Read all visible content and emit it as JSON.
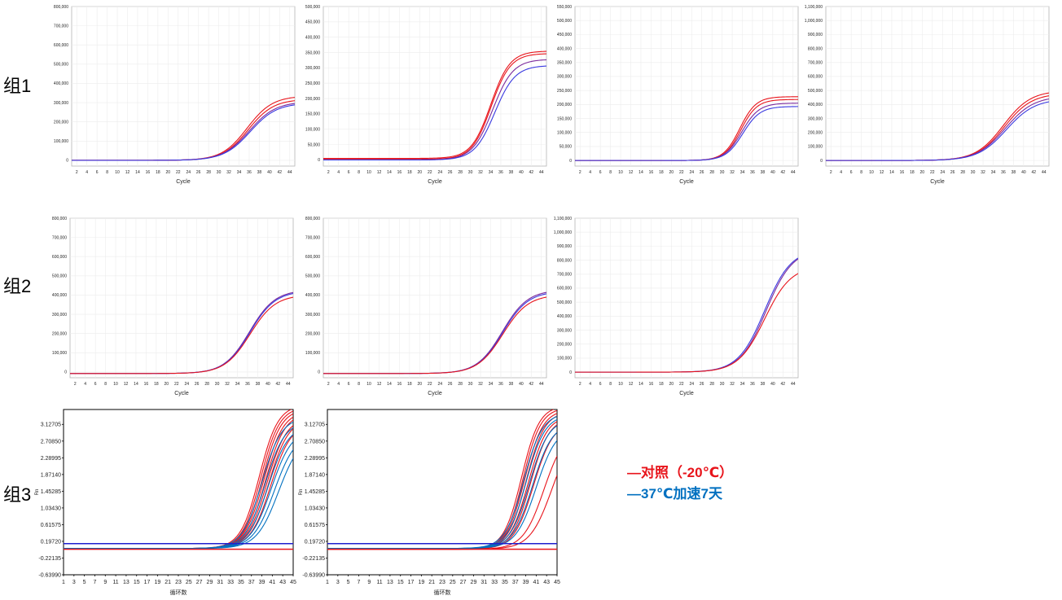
{
  "groups": [
    {
      "label": "组1"
    },
    {
      "label": "组2"
    },
    {
      "label": "组3"
    }
  ],
  "legend": {
    "items": [
      {
        "text": "—对照（-20℃）",
        "color": "#e8141b"
      },
      {
        "text": "—37℃加速7天",
        "color": "#0070c0"
      }
    ]
  },
  "chart_data": [
    {
      "type": "line",
      "group": "组1",
      "xlabel": "Cycle",
      "ylabel": "",
      "grid": true,
      "xlim": [
        1,
        45
      ],
      "ylim": [
        -30000,
        800000
      ],
      "xticks": [
        2,
        4,
        6,
        8,
        10,
        12,
        14,
        16,
        18,
        20,
        22,
        24,
        26,
        28,
        30,
        32,
        34,
        36,
        38,
        40,
        42,
        44
      ],
      "yticks": [
        0,
        100000,
        200000,
        300000,
        400000,
        500000,
        600000,
        700000,
        800000
      ],
      "ytick_labels": [
        "0",
        "100,000",
        "200,000",
        "300,000",
        "400,000",
        "500,000",
        "600,000",
        "700,000",
        "800,000"
      ],
      "series": [
        {
          "color": "#e8141b",
          "midpoint": 35.6,
          "slope": 2.5,
          "plateau": 335000,
          "baseline": 0
        },
        {
          "color": "#e8141b",
          "midpoint": 35.8,
          "slope": 2.5,
          "plateau": 318000,
          "baseline": 0
        },
        {
          "color": "#7b2a9c",
          "midpoint": 36.0,
          "slope": 2.6,
          "plateau": 305000,
          "baseline": 0
        },
        {
          "color": "#3a3ae0",
          "midpoint": 36.2,
          "slope": 2.6,
          "plateau": 298000,
          "baseline": 0
        }
      ]
    },
    {
      "type": "line",
      "group": "组1",
      "xlabel": "Cycle",
      "ylabel": "",
      "grid": true,
      "xlim": [
        1,
        45
      ],
      "ylim": [
        -20000,
        500000
      ],
      "xticks": [
        2,
        4,
        6,
        8,
        10,
        12,
        14,
        16,
        18,
        20,
        22,
        24,
        26,
        28,
        30,
        32,
        34,
        36,
        38,
        40,
        42,
        44
      ],
      "yticks": [
        0,
        50000,
        100000,
        150000,
        200000,
        250000,
        300000,
        350000,
        400000,
        450000,
        500000
      ],
      "ytick_labels": [
        "0",
        "50,000",
        "100,000",
        "150,000",
        "200,000",
        "250,000",
        "300,000",
        "350,000",
        "400,000",
        "450,000",
        "500,000"
      ],
      "series": [
        {
          "color": "#e8141b",
          "midpoint": 34.0,
          "slope": 1.9,
          "plateau": 350000,
          "baseline": 5000
        },
        {
          "color": "#e8141b",
          "midpoint": 34.1,
          "slope": 1.9,
          "plateau": 345000,
          "baseline": 2000
        },
        {
          "color": "#7b2a9c",
          "midpoint": 34.4,
          "slope": 2.0,
          "plateau": 328000,
          "baseline": 0
        },
        {
          "color": "#3a3ae0",
          "midpoint": 34.8,
          "slope": 2.0,
          "plateau": 308000,
          "baseline": 0
        }
      ]
    },
    {
      "type": "line",
      "group": "组1",
      "xlabel": "Cycle",
      "ylabel": "",
      "grid": true,
      "xlim": [
        1,
        45
      ],
      "ylim": [
        -20000,
        550000
      ],
      "xticks": [
        2,
        4,
        6,
        8,
        10,
        12,
        14,
        16,
        18,
        20,
        22,
        24,
        26,
        28,
        30,
        32,
        34,
        36,
        38,
        40,
        42,
        44
      ],
      "yticks": [
        0,
        50000,
        100000,
        150000,
        200000,
        250000,
        300000,
        350000,
        400000,
        450000,
        500000,
        550000
      ],
      "ytick_labels": [
        "0",
        "50,000",
        "100,000",
        "150,000",
        "200,000",
        "250,000",
        "300,000",
        "350,000",
        "400,000",
        "450,000",
        "500,000",
        "550,000"
      ],
      "series": [
        {
          "color": "#e8141b",
          "midpoint": 33.5,
          "slope": 1.6,
          "plateau": 228000,
          "baseline": 0
        },
        {
          "color": "#e8141b",
          "midpoint": 33.7,
          "slope": 1.6,
          "plateau": 218000,
          "baseline": 0
        },
        {
          "color": "#7b2a9c",
          "midpoint": 33.9,
          "slope": 1.7,
          "plateau": 205000,
          "baseline": 0
        },
        {
          "color": "#3a3ae0",
          "midpoint": 34.1,
          "slope": 1.7,
          "plateau": 193000,
          "baseline": 0
        }
      ]
    },
    {
      "type": "line",
      "group": "组1",
      "xlabel": "Cycle",
      "ylabel": "",
      "grid": true,
      "xlim": [
        1,
        45
      ],
      "ylim": [
        -40000,
        1100000
      ],
      "xticks": [
        2,
        4,
        6,
        8,
        10,
        12,
        14,
        16,
        18,
        20,
        22,
        24,
        26,
        28,
        30,
        32,
        34,
        36,
        38,
        40,
        42,
        44
      ],
      "yticks": [
        0,
        100000,
        200000,
        300000,
        400000,
        500000,
        600000,
        700000,
        800000,
        900000,
        1000000,
        1100000
      ],
      "ytick_labels": [
        "0",
        "100,000",
        "200,000",
        "300,000",
        "400,000",
        "500,000",
        "600,000",
        "700,000",
        "800,000",
        "900,000",
        "1,000,000",
        "1,100,000"
      ],
      "series": [
        {
          "color": "#e8141b",
          "midpoint": 36.0,
          "slope": 2.7,
          "plateau": 500000,
          "baseline": 0
        },
        {
          "color": "#e8141b",
          "midpoint": 36.2,
          "slope": 2.7,
          "plateau": 480000,
          "baseline": 0
        },
        {
          "color": "#7b2a9c",
          "midpoint": 36.4,
          "slope": 2.8,
          "plateau": 460000,
          "baseline": 0
        },
        {
          "color": "#3a3ae0",
          "midpoint": 36.6,
          "slope": 2.8,
          "plateau": 440000,
          "baseline": 0
        }
      ]
    },
    {
      "type": "line",
      "group": "组2",
      "xlabel": "Cycle",
      "ylabel": "",
      "grid": true,
      "xlim": [
        1,
        45
      ],
      "ylim": [
        -30000,
        800000
      ],
      "xticks": [
        2,
        4,
        6,
        8,
        10,
        12,
        14,
        16,
        18,
        20,
        22,
        24,
        26,
        28,
        30,
        32,
        34,
        36,
        38,
        40,
        42,
        44
      ],
      "yticks": [
        0,
        100000,
        200000,
        300000,
        400000,
        500000,
        600000,
        700000,
        800000
      ],
      "ytick_labels": [
        "0",
        "100,000",
        "200,000",
        "300,000",
        "400,000",
        "500,000",
        "600,000",
        "700,000",
        "800,000"
      ],
      "series": [
        {
          "color": "#7b2a9c",
          "midpoint": 36.4,
          "slope": 2.5,
          "plateau": 435000,
          "baseline": -8000
        },
        {
          "color": "#3a3ae0",
          "midpoint": 36.5,
          "slope": 2.5,
          "plateau": 430000,
          "baseline": -8000
        },
        {
          "color": "#e8141b",
          "midpoint": 36.5,
          "slope": 2.5,
          "plateau": 410000,
          "baseline": -8000
        }
      ]
    },
    {
      "type": "line",
      "group": "组2",
      "xlabel": "Cycle",
      "ylabel": "",
      "grid": true,
      "xlim": [
        1,
        45
      ],
      "ylim": [
        -30000,
        800000
      ],
      "xticks": [
        2,
        4,
        6,
        8,
        10,
        12,
        14,
        16,
        18,
        20,
        22,
        24,
        26,
        28,
        30,
        32,
        34,
        36,
        38,
        40,
        42,
        44
      ],
      "yticks": [
        0,
        100000,
        200000,
        300000,
        400000,
        500000,
        600000,
        700000,
        800000
      ],
      "ytick_labels": [
        "0",
        "100,000",
        "200,000",
        "300,000",
        "400,000",
        "500,000",
        "600,000",
        "700,000",
        "800,000"
      ],
      "series": [
        {
          "color": "#7b2a9c",
          "midpoint": 36.3,
          "slope": 2.5,
          "plateau": 435000,
          "baseline": -8000
        },
        {
          "color": "#3a3ae0",
          "midpoint": 36.4,
          "slope": 2.5,
          "plateau": 428000,
          "baseline": -8000
        },
        {
          "color": "#e8141b",
          "midpoint": 36.4,
          "slope": 2.5,
          "plateau": 410000,
          "baseline": -8000
        }
      ]
    },
    {
      "type": "line",
      "group": "组2",
      "xlabel": "Cycle",
      "ylabel": "",
      "grid": true,
      "xlim": [
        1,
        45
      ],
      "ylim": [
        -40000,
        1100000
      ],
      "xticks": [
        2,
        4,
        6,
        8,
        10,
        12,
        14,
        16,
        18,
        20,
        22,
        24,
        26,
        28,
        30,
        32,
        34,
        36,
        38,
        40,
        42,
        44
      ],
      "yticks": [
        0,
        100000,
        200000,
        300000,
        400000,
        500000,
        600000,
        700000,
        800000,
        900000,
        1000000,
        1100000
      ],
      "ytick_labels": [
        "0",
        "100,000",
        "200,000",
        "300,000",
        "400,000",
        "500,000",
        "600,000",
        "700,000",
        "800,000",
        "900,000",
        "1,000,000",
        "1,100,000"
      ],
      "series": [
        {
          "color": "#3a3ae0",
          "midpoint": 38.4,
          "slope": 2.6,
          "plateau": 880000,
          "baseline": 0
        },
        {
          "color": "#7b2a9c",
          "midpoint": 38.7,
          "slope": 2.6,
          "plateau": 880000,
          "baseline": 0
        },
        {
          "color": "#e8141b",
          "midpoint": 38.4,
          "slope": 2.6,
          "plateau": 760000,
          "baseline": 0
        }
      ]
    },
    {
      "type": "line",
      "group": "组3",
      "xlabel": "循环数",
      "ylabel": "Rn",
      "grid": false,
      "xlim": [
        1,
        45
      ],
      "ylim": [
        -0.6399,
        3.5
      ],
      "xticks": [
        1,
        3,
        5,
        7,
        9,
        11,
        13,
        15,
        17,
        19,
        21,
        23,
        25,
        27,
        29,
        31,
        33,
        35,
        37,
        39,
        41,
        43,
        45
      ],
      "yticks": [
        -0.6399,
        -0.22135,
        0.1972,
        0.61575,
        1.0343,
        1.45285,
        1.8714,
        2.28995,
        2.7085,
        3.12705
      ],
      "ytick_labels": [
        "-0.63990",
        "-0.22135",
        "0.19720",
        "0.61575",
        "1.03430",
        "1.45285",
        "1.87140",
        "2.28995",
        "2.70850",
        "3.12705"
      ],
      "threshold": 0.14,
      "series": [
        {
          "color": "#e8141b",
          "midpoint": 38.5,
          "slope": 1.8,
          "plateau": 3.6,
          "baseline": 0.02
        },
        {
          "color": "#e8141b",
          "midpoint": 38.8,
          "slope": 1.8,
          "plateau": 3.55,
          "baseline": 0.02
        },
        {
          "color": "#e8141b",
          "midpoint": 39.1,
          "slope": 1.8,
          "plateau": 3.5,
          "baseline": 0.02
        },
        {
          "color": "#e8141b",
          "midpoint": 39.4,
          "slope": 1.85,
          "plateau": 3.45,
          "baseline": 0.02
        },
        {
          "color": "#e8141b",
          "midpoint": 39.7,
          "slope": 1.85,
          "plateau": 3.4,
          "baseline": 0.02
        },
        {
          "color": "#e8141b",
          "midpoint": 40.0,
          "slope": 1.9,
          "plateau": 3.3,
          "baseline": 0.02
        },
        {
          "color": "#e8141b",
          "midpoint": 40.3,
          "slope": 1.9,
          "plateau": 3.25,
          "baseline": 0.02
        },
        {
          "color": "#e8141b",
          "midpoint": 40.7,
          "slope": 1.95,
          "plateau": 3.15,
          "baseline": 0.02
        },
        {
          "color": "#0070c0",
          "midpoint": 39.0,
          "slope": 1.9,
          "plateau": 3.3,
          "baseline": 0.02
        },
        {
          "color": "#0070c0",
          "midpoint": 39.6,
          "slope": 1.9,
          "plateau": 3.2,
          "baseline": 0.02
        },
        {
          "color": "#0070c0",
          "midpoint": 40.2,
          "slope": 1.95,
          "plateau": 3.1,
          "baseline": 0.02
        },
        {
          "color": "#0070c0",
          "midpoint": 40.8,
          "slope": 2.0,
          "plateau": 3.0,
          "baseline": 0.02
        },
        {
          "color": "#0070c0",
          "midpoint": 41.4,
          "slope": 2.05,
          "plateau": 2.9,
          "baseline": 0.02
        },
        {
          "color": "#0070c0",
          "midpoint": 42.2,
          "slope": 2.1,
          "plateau": 2.85,
          "baseline": 0.02
        }
      ]
    },
    {
      "type": "line",
      "group": "组3",
      "xlabel": "循环数",
      "ylabel": "Rn",
      "grid": false,
      "xlim": [
        1,
        45
      ],
      "ylim": [
        -0.6399,
        3.5
      ],
      "xticks": [
        1,
        3,
        5,
        7,
        9,
        11,
        13,
        15,
        17,
        19,
        21,
        23,
        25,
        27,
        29,
        31,
        33,
        35,
        37,
        39,
        41,
        43,
        45
      ],
      "yticks": [
        -0.6399,
        -0.22135,
        0.1972,
        0.61575,
        1.0343,
        1.45285,
        1.8714,
        2.28995,
        2.7085,
        3.12705
      ],
      "ytick_labels": [
        "-0.63990",
        "-0.22135",
        "0.19720",
        "0.61575",
        "1.03430",
        "1.45285",
        "1.87140",
        "2.28995",
        "2.70850",
        "3.12705"
      ],
      "threshold": 0.14,
      "series": [
        {
          "color": "#e8141b",
          "midpoint": 38.2,
          "slope": 1.7,
          "plateau": 3.6,
          "baseline": 0.0
        },
        {
          "color": "#e8141b",
          "midpoint": 38.5,
          "slope": 1.7,
          "plateau": 3.55,
          "baseline": 0.0
        },
        {
          "color": "#e8141b",
          "midpoint": 38.8,
          "slope": 1.75,
          "plateau": 3.5,
          "baseline": 0.0
        },
        {
          "color": "#e8141b",
          "midpoint": 39.1,
          "slope": 1.75,
          "plateau": 3.45,
          "baseline": 0.0
        },
        {
          "color": "#e8141b",
          "midpoint": 39.5,
          "slope": 1.8,
          "plateau": 3.35,
          "baseline": 0.0
        },
        {
          "color": "#e8141b",
          "midpoint": 39.9,
          "slope": 1.8,
          "plateau": 3.3,
          "baseline": 0.0
        },
        {
          "color": "#e8141b",
          "midpoint": 40.5,
          "slope": 1.9,
          "plateau": 3.2,
          "baseline": 0.0
        },
        {
          "color": "#e8141b",
          "midpoint": 42.5,
          "slope": 2.0,
          "plateau": 3.0,
          "baseline": 0.0
        },
        {
          "color": "#e8141b",
          "midpoint": 44.0,
          "slope": 2.1,
          "plateau": 3.0,
          "baseline": 0.0
        },
        {
          "color": "#0070c0",
          "midpoint": 38.6,
          "slope": 1.8,
          "plateau": 3.4,
          "baseline": 0.02
        },
        {
          "color": "#0070c0",
          "midpoint": 39.1,
          "slope": 1.8,
          "plateau": 3.35,
          "baseline": 0.02
        },
        {
          "color": "#0070c0",
          "midpoint": 39.7,
          "slope": 1.85,
          "plateau": 3.25,
          "baseline": 0.02
        },
        {
          "color": "#0070c0",
          "midpoint": 40.3,
          "slope": 1.9,
          "plateau": 3.15,
          "baseline": 0.02
        },
        {
          "color": "#0070c0",
          "midpoint": 41.0,
          "slope": 1.95,
          "plateau": 3.05,
          "baseline": 0.02
        }
      ]
    }
  ]
}
